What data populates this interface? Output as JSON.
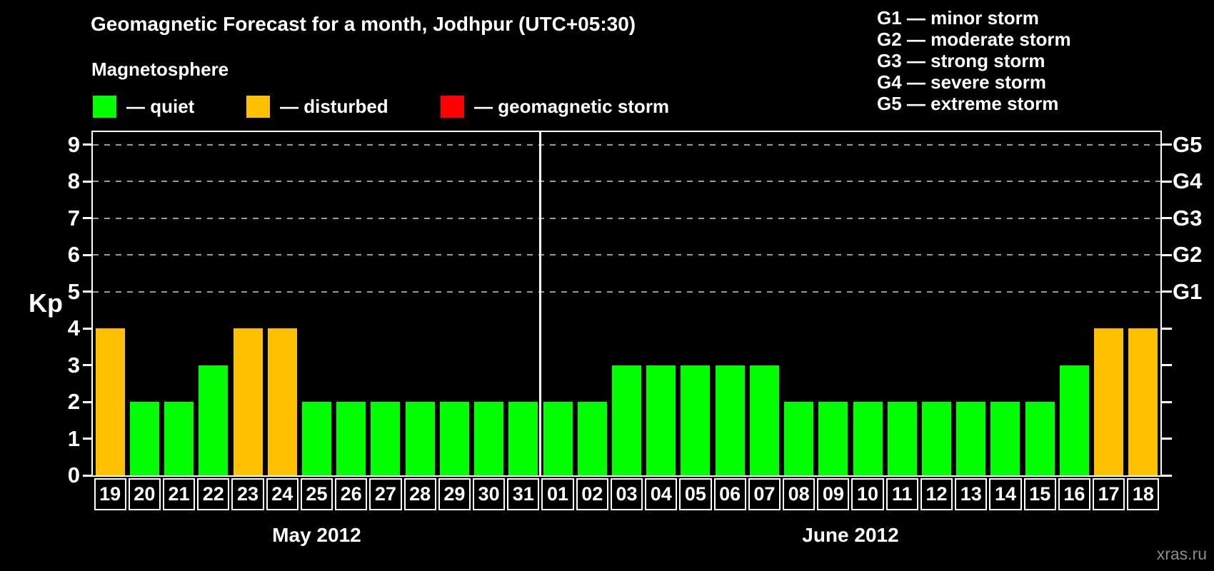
{
  "watermark": "xras.ru",
  "colors": {
    "quiet": "#00ff00",
    "disturbed": "#ffc000",
    "storm": "#ff0000",
    "grid": "#9a9a9a",
    "text": "#ffffff",
    "background": "#000000",
    "watermark": "#8c8c8c"
  },
  "legend": {
    "heading": "Magnetosphere",
    "items": [
      {
        "key": "quiet",
        "label": "— quiet",
        "color": "#00ff00"
      },
      {
        "key": "disturbed",
        "label": "— disturbed",
        "color": "#ffc000"
      },
      {
        "key": "storm",
        "label": "— geomagnetic storm",
        "color": "#ff0000"
      }
    ]
  },
  "g_legend": {
    "items": [
      {
        "label": "G1 — minor storm"
      },
      {
        "label": "G2 — moderate storm"
      },
      {
        "label": "G3 — strong storm"
      },
      {
        "label": "G4 — severe storm"
      },
      {
        "label": "G5 — extreme storm"
      }
    ]
  },
  "chart_data": {
    "type": "bar",
    "title": "Geomagnetic Forecast for a month, Jodhpur (UTC+05:30)",
    "ylabel": "Kp",
    "ylim": [
      0,
      9.5
    ],
    "yticks": [
      0,
      1,
      2,
      3,
      4,
      5,
      6,
      7,
      8,
      9
    ],
    "grid": "dashed horizontal at Kp 5-9",
    "gridlines_at_kp": [
      5,
      6,
      7,
      8,
      9
    ],
    "right_axis_labels": [
      {
        "kp": 5,
        "label": "G1"
      },
      {
        "kp": 6,
        "label": "G2"
      },
      {
        "kp": 7,
        "label": "G3"
      },
      {
        "kp": 8,
        "label": "G4"
      },
      {
        "kp": 9,
        "label": "G5"
      }
    ],
    "months": [
      {
        "label": "May 2012",
        "start_index": 0,
        "num_days": 13
      },
      {
        "label": "June 2012",
        "start_index": 13,
        "num_days": 18
      }
    ],
    "days": [
      {
        "date": "19",
        "month": "May 2012",
        "kp": 4,
        "status": "disturbed"
      },
      {
        "date": "20",
        "month": "May 2012",
        "kp": 2,
        "status": "quiet"
      },
      {
        "date": "21",
        "month": "May 2012",
        "kp": 2,
        "status": "quiet"
      },
      {
        "date": "22",
        "month": "May 2012",
        "kp": 3,
        "status": "quiet"
      },
      {
        "date": "23",
        "month": "May 2012",
        "kp": 4,
        "status": "disturbed"
      },
      {
        "date": "24",
        "month": "May 2012",
        "kp": 4,
        "status": "disturbed"
      },
      {
        "date": "25",
        "month": "May 2012",
        "kp": 2,
        "status": "quiet"
      },
      {
        "date": "26",
        "month": "May 2012",
        "kp": 2,
        "status": "quiet"
      },
      {
        "date": "27",
        "month": "May 2012",
        "kp": 2,
        "status": "quiet"
      },
      {
        "date": "28",
        "month": "May 2012",
        "kp": 2,
        "status": "quiet"
      },
      {
        "date": "29",
        "month": "May 2012",
        "kp": 2,
        "status": "quiet"
      },
      {
        "date": "30",
        "month": "May 2012",
        "kp": 2,
        "status": "quiet"
      },
      {
        "date": "31",
        "month": "May 2012",
        "kp": 2,
        "status": "quiet"
      },
      {
        "date": "01",
        "month": "June 2012",
        "kp": 2,
        "status": "quiet"
      },
      {
        "date": "02",
        "month": "June 2012",
        "kp": 2,
        "status": "quiet"
      },
      {
        "date": "03",
        "month": "June 2012",
        "kp": 3,
        "status": "quiet"
      },
      {
        "date": "04",
        "month": "June 2012",
        "kp": 3,
        "status": "quiet"
      },
      {
        "date": "05",
        "month": "June 2012",
        "kp": 3,
        "status": "quiet"
      },
      {
        "date": "06",
        "month": "June 2012",
        "kp": 3,
        "status": "quiet"
      },
      {
        "date": "07",
        "month": "June 2012",
        "kp": 3,
        "status": "quiet"
      },
      {
        "date": "08",
        "month": "June 2012",
        "kp": 2,
        "status": "quiet"
      },
      {
        "date": "09",
        "month": "June 2012",
        "kp": 2,
        "status": "quiet"
      },
      {
        "date": "10",
        "month": "June 2012",
        "kp": 2,
        "status": "quiet"
      },
      {
        "date": "11",
        "month": "June 2012",
        "kp": 2,
        "status": "quiet"
      },
      {
        "date": "12",
        "month": "June 2012",
        "kp": 2,
        "status": "quiet"
      },
      {
        "date": "13",
        "month": "June 2012",
        "kp": 2,
        "status": "quiet"
      },
      {
        "date": "14",
        "month": "June 2012",
        "kp": 2,
        "status": "quiet"
      },
      {
        "date": "15",
        "month": "June 2012",
        "kp": 2,
        "status": "quiet"
      },
      {
        "date": "16",
        "month": "June 2012",
        "kp": 3,
        "status": "quiet"
      },
      {
        "date": "17",
        "month": "June 2012",
        "kp": 4,
        "status": "disturbed"
      },
      {
        "date": "18",
        "month": "June 2012",
        "kp": 4,
        "status": "disturbed"
      }
    ]
  }
}
